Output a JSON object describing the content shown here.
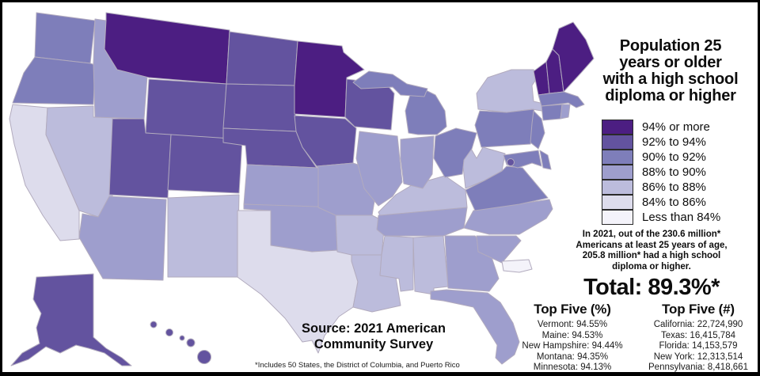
{
  "title": {
    "lines": [
      "Population 25",
      "years or older",
      "with a high school",
      "diploma or higher"
    ]
  },
  "legend": {
    "items": [
      {
        "label": "94% or more",
        "color": "#4c1e82"
      },
      {
        "label": "92% to 94%",
        "color": "#63539f"
      },
      {
        "label": "90% to 92%",
        "color": "#7e7eba"
      },
      {
        "label": "88% to 90%",
        "color": "#9e9ecd"
      },
      {
        "label": "86% to 88%",
        "color": "#bcbcdc"
      },
      {
        "label": "84% to 86%",
        "color": "#dddcec"
      },
      {
        "label": "Less than 84%",
        "color": "#f4f3fa"
      }
    ]
  },
  "summary": {
    "lines": [
      "In 2021, out of the 230.6 million*",
      "Americans at least 25 years of age,",
      "205.8 million* had a high school",
      "diploma or higher."
    ],
    "total": "Total: 89.3%*"
  },
  "top_five_percent": {
    "heading": "Top Five (%)",
    "items": [
      "Vermont: 94.55%",
      "Maine: 94.53%",
      "New Hampshire: 94.44%",
      "Montana: 94.35%",
      "Minnesota: 94.13%"
    ]
  },
  "top_five_count": {
    "heading": "Top Five (#)",
    "items": [
      "California: 22,724,990",
      "Texas: 16,415,784",
      "Florida: 14,153,579",
      "New York: 12,313,514",
      "Pennsylvania: 8,418,661"
    ]
  },
  "source": {
    "lines": [
      "Source: 2021 American",
      "Community Survey"
    ]
  },
  "footnote": "*Includes 50 States, the District of Columbia, and Puerto Rico",
  "chart_data": {
    "type": "heatmap",
    "title": "Population 25 years or older with a high school diploma or higher",
    "legend_categories": [
      "94% or more",
      "92% to 94%",
      "90% to 92%",
      "88% to 90%",
      "86% to 88%",
      "84% to 86%",
      "Less than 84%"
    ],
    "total": "89.3%",
    "top_five_percent": [
      [
        "Vermont",
        94.55
      ],
      [
        "Maine",
        94.53
      ],
      [
        "New Hampshire",
        94.44
      ],
      [
        "Montana",
        94.35
      ],
      [
        "Minnesota",
        94.13
      ]
    ],
    "top_five_count": [
      [
        "California",
        22724990
      ],
      [
        "Texas",
        16415784
      ],
      [
        "Florida",
        14153579
      ],
      [
        "New York",
        12313514
      ],
      [
        "Pennsylvania",
        8418661
      ]
    ]
  },
  "map": {
    "states": [
      {
        "code": "WA",
        "name": "Washington",
        "category": "90% to 92%"
      },
      {
        "code": "OR",
        "name": "Oregon",
        "category": "90% to 92%"
      },
      {
        "code": "CA",
        "name": "California",
        "category": "84% to 86%"
      },
      {
        "code": "NV",
        "name": "Nevada",
        "category": "86% to 88%"
      },
      {
        "code": "ID",
        "name": "Idaho",
        "category": "88% to 90%"
      },
      {
        "code": "MT",
        "name": "Montana",
        "category": "94% or more"
      },
      {
        "code": "WY",
        "name": "Wyoming",
        "category": "92% to 94%"
      },
      {
        "code": "UT",
        "name": "Utah",
        "category": "92% to 94%"
      },
      {
        "code": "CO",
        "name": "Colorado",
        "category": "92% to 94%"
      },
      {
        "code": "AZ",
        "name": "Arizona",
        "category": "88% to 90%"
      },
      {
        "code": "NM",
        "name": "New Mexico",
        "category": "86% to 88%"
      },
      {
        "code": "ND",
        "name": "North Dakota",
        "category": "92% to 94%"
      },
      {
        "code": "SD",
        "name": "South Dakota",
        "category": "92% to 94%"
      },
      {
        "code": "NE",
        "name": "Nebraska",
        "category": "92% to 94%"
      },
      {
        "code": "KS",
        "name": "Kansas",
        "category": "88% to 90%"
      },
      {
        "code": "OK",
        "name": "Oklahoma",
        "category": "88% to 90%"
      },
      {
        "code": "TX",
        "name": "Texas",
        "category": "84% to 86%"
      },
      {
        "code": "MN",
        "name": "Minnesota",
        "category": "94% or more"
      },
      {
        "code": "IA",
        "name": "Iowa",
        "category": "92% to 94%"
      },
      {
        "code": "WI",
        "name": "Wisconsin",
        "category": "92% to 94%"
      },
      {
        "code": "MO",
        "name": "Missouri",
        "category": "88% to 90%"
      },
      {
        "code": "AR",
        "name": "Arkansas",
        "category": "86% to 88%"
      },
      {
        "code": "LA",
        "name": "Louisiana",
        "category": "86% to 88%"
      },
      {
        "code": "MS",
        "name": "Mississippi",
        "category": "86% to 88%"
      },
      {
        "code": "AL",
        "name": "Alabama",
        "category": "86% to 88%"
      },
      {
        "code": "GA",
        "name": "Georgia",
        "category": "88% to 90%"
      },
      {
        "code": "FL",
        "name": "Florida",
        "category": "88% to 90%"
      },
      {
        "code": "SC",
        "name": "South Carolina",
        "category": "88% to 90%"
      },
      {
        "code": "NC",
        "name": "North Carolina",
        "category": "88% to 90%"
      },
      {
        "code": "TN",
        "name": "Tennessee",
        "category": "88% to 90%"
      },
      {
        "code": "KY",
        "name": "Kentucky",
        "category": "86% to 88%"
      },
      {
        "code": "WV",
        "name": "West Virginia",
        "category": "86% to 88%"
      },
      {
        "code": "VA",
        "name": "Virginia",
        "category": "90% to 92%"
      },
      {
        "code": "OH",
        "name": "Ohio",
        "category": "90% to 92%"
      },
      {
        "code": "IN",
        "name": "Indiana",
        "category": "88% to 90%"
      },
      {
        "code": "IL",
        "name": "Illinois",
        "category": "88% to 90%"
      },
      {
        "code": "MI",
        "name": "Michigan",
        "category": "90% to 92%"
      },
      {
        "code": "NY",
        "name": "New York",
        "category": "86% to 88%"
      },
      {
        "code": "PA",
        "name": "Pennsylvania",
        "category": "90% to 92%"
      },
      {
        "code": "NJ",
        "name": "New Jersey",
        "category": "90% to 92%"
      },
      {
        "code": "VT",
        "name": "Vermont",
        "category": "94% or more"
      },
      {
        "code": "NH",
        "name": "New Hampshire",
        "category": "94% or more"
      },
      {
        "code": "ME",
        "name": "Maine",
        "category": "94% or more"
      },
      {
        "code": "MA",
        "name": "Massachusetts",
        "category": "90% to 92%"
      },
      {
        "code": "CT",
        "name": "Connecticut",
        "category": "90% to 92%"
      },
      {
        "code": "RI",
        "name": "Rhode Island",
        "category": "88% to 90%"
      },
      {
        "code": "DE",
        "name": "Delaware",
        "category": "90% to 92%"
      },
      {
        "code": "MD",
        "name": "Maryland",
        "category": "90% to 92%"
      },
      {
        "code": "DC",
        "name": "District of Columbia",
        "category": "92% to 94%"
      },
      {
        "code": "AK",
        "name": "Alaska",
        "category": "92% to 94%"
      },
      {
        "code": "HI",
        "name": "Hawaii",
        "category": "92% to 94%"
      },
      {
        "code": "PR",
        "name": "Puerto Rico",
        "category": "Less than 84%"
      }
    ]
  }
}
